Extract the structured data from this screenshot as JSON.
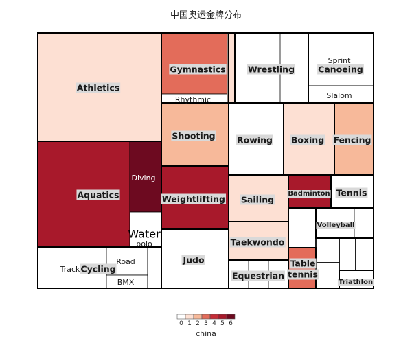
{
  "title": "中国奥运金牌分布",
  "chart_data": {
    "type": "treemap",
    "title": "中国奥运金牌分布",
    "color_variable": "china",
    "legend": {
      "title": "china",
      "placement": "bottom",
      "ticks": [
        "0",
        "1",
        "2",
        "3",
        "4",
        "5",
        "6"
      ],
      "colors": [
        "#ffffff",
        "#fde0d3",
        "#f7b99a",
        "#e36c5a",
        "#c62d37",
        "#a8192b",
        "#6d0a20"
      ]
    },
    "sports": [
      {
        "name": "Athletics",
        "china": 1,
        "events": [
          {
            "name": "",
            "china": 1
          }
        ]
      },
      {
        "name": "Aquatics",
        "china": 5,
        "events": [
          {
            "name": "",
            "china": 5
          },
          {
            "name": "Diving",
            "china": 6
          },
          {
            "name": "Water polo",
            "china": 0
          }
        ]
      },
      {
        "name": "Cycling",
        "china": 0,
        "events": [
          {
            "name": "Track",
            "china": 0
          },
          {
            "name": "Road",
            "china": 0
          },
          {
            "name": "BMX",
            "china": 0
          },
          {
            "name": "",
            "china": 0
          }
        ]
      },
      {
        "name": "Gymnastics",
        "china": 3,
        "events": [
          {
            "name": "",
            "china": 3
          },
          {
            "name": "Rhythmic",
            "china": 0
          },
          {
            "name": "",
            "china": 1
          }
        ]
      },
      {
        "name": "Shooting",
        "china": 2,
        "events": [
          {
            "name": "",
            "china": 2
          }
        ]
      },
      {
        "name": "Weightlifting",
        "china": 5,
        "events": [
          {
            "name": "",
            "china": 5
          }
        ]
      },
      {
        "name": "Judo",
        "china": 0,
        "events": [
          {
            "name": "",
            "china": 0
          }
        ]
      },
      {
        "name": "Wrestling",
        "china": 0,
        "events": [
          {
            "name": "",
            "china": 0
          }
        ]
      },
      {
        "name": "Canoeing",
        "china": 0,
        "events": [
          {
            "name": "Sprint",
            "china": 0
          },
          {
            "name": "Slalom",
            "china": 0
          }
        ]
      },
      {
        "name": "Rowing",
        "china": 0,
        "events": [
          {
            "name": "",
            "china": 0
          }
        ]
      },
      {
        "name": "Boxing",
        "china": 1,
        "events": [
          {
            "name": "",
            "china": 1
          }
        ]
      },
      {
        "name": "Fencing",
        "china": 2,
        "events": [
          {
            "name": "",
            "china": 2
          }
        ]
      },
      {
        "name": "Sailing",
        "china": 1,
        "events": [
          {
            "name": "",
            "china": 1
          }
        ]
      },
      {
        "name": "Badminton",
        "china": 5,
        "events": [
          {
            "name": "",
            "china": 5
          }
        ]
      },
      {
        "name": "Tennis",
        "china": 0,
        "events": [
          {
            "name": "",
            "china": 0
          }
        ]
      },
      {
        "name": "Taekwondo",
        "china": 1,
        "events": [
          {
            "name": "",
            "china": 1
          }
        ]
      },
      {
        "name": "Volleyball",
        "china": 0,
        "events": [
          {
            "name": "",
            "china": 0
          }
        ]
      },
      {
        "name": "Equestrian",
        "china": 0,
        "events": [
          {
            "name": "",
            "china": 0
          }
        ]
      },
      {
        "name": "Table tennis",
        "china": 3,
        "events": [
          {
            "name": "",
            "china": 3
          }
        ]
      },
      {
        "name": "Triathlon",
        "china": 0,
        "events": [
          {
            "name": "",
            "china": 0
          }
        ]
      }
    ]
  }
}
